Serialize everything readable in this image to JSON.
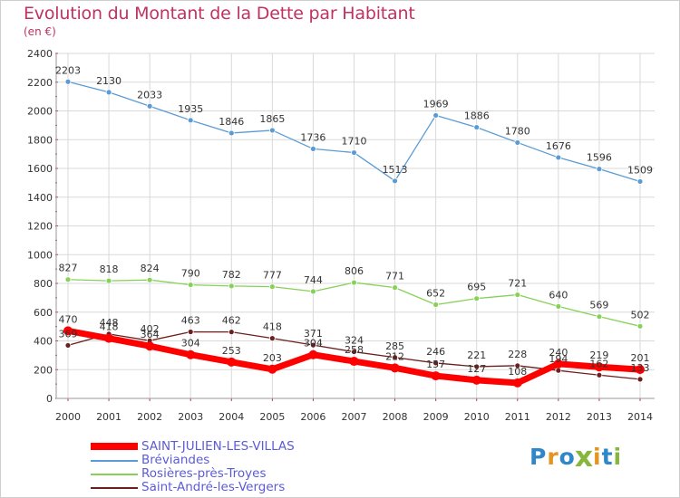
{
  "brand": {
    "name": "Proxiti",
    "letters": [
      "P",
      "r",
      "o",
      "x",
      "i",
      "t",
      "i"
    ],
    "letter_colors": [
      "#2f86c8",
      "#e39421",
      "#2f86c8",
      "#86b73c",
      "#e39421",
      "#2f86c8",
      "#86b73c"
    ]
  },
  "colors": {
    "title": "#c0325f",
    "grid": "#d9d9d9",
    "axis_ticks": "#c0325f",
    "legend_text": "#5b5bd6"
  },
  "chart_data": {
    "type": "line",
    "title": "Evolution du Montant de la Dette par Habitant",
    "subtitle": "(en €)",
    "xlabel": "",
    "ylabel": "",
    "categories": [
      "2000",
      "2001",
      "2002",
      "2003",
      "2004",
      "2005",
      "2006",
      "2007",
      "2008",
      "2009",
      "2010",
      "2011",
      "2012",
      "2013",
      "2014"
    ],
    "ylim": [
      0,
      2400
    ],
    "yticks": [
      0,
      200,
      400,
      600,
      800,
      1000,
      1200,
      1400,
      1600,
      1800,
      2000,
      2200,
      2400
    ],
    "grid": true,
    "legend_position": "bottom-left",
    "series": [
      {
        "name": "SAINT-JULIEN-LES-VILLAS",
        "color": "#ff0000",
        "emphasis": true,
        "values": [
          470,
          418,
          364,
          304,
          253,
          203,
          304,
          258,
          212,
          157,
          127,
          108,
          240,
          219,
          201
        ],
        "labels": [
          "470",
          "418",
          "364",
          "304",
          "253",
          "203",
          "304",
          "258",
          "212",
          "157",
          "127",
          "108",
          "240",
          "219",
          "201"
        ]
      },
      {
        "name": "Bréviandes",
        "color": "#5b9bd5",
        "emphasis": false,
        "values": [
          2203,
          2130,
          2033,
          1935,
          1846,
          1865,
          1736,
          1710,
          1513,
          1969,
          1886,
          1780,
          1676,
          1596,
          1509
        ],
        "labels": [
          "2203",
          "2130",
          "2033",
          "1935",
          "1846",
          "1865",
          "1736",
          "1710",
          "1513",
          "1969",
          "1886",
          "1780",
          "1676",
          "1596",
          "1509"
        ]
      },
      {
        "name": "Rosières-près-Troyes",
        "color": "#88d158",
        "emphasis": false,
        "values": [
          827,
          818,
          824,
          790,
          782,
          777,
          744,
          806,
          771,
          652,
          695,
          721,
          640,
          569,
          502
        ],
        "labels": [
          "827",
          "818",
          "824",
          "790",
          "782",
          "777",
          "744",
          "806",
          "771",
          "652",
          "695",
          "721",
          "640",
          "569",
          "502"
        ]
      },
      {
        "name": "Saint-André-les-Vergers",
        "color": "#6b1f1f",
        "emphasis": false,
        "values": [
          369,
          448,
          402,
          463,
          462,
          418,
          371,
          324,
          285,
          246,
          221,
          228,
          194,
          162,
          133
        ],
        "labels": [
          "369",
          "448",
          "402",
          "463",
          "462",
          "418",
          "371",
          "324",
          "285",
          "246",
          "221",
          "228",
          "194",
          "162",
          "133"
        ]
      }
    ]
  }
}
